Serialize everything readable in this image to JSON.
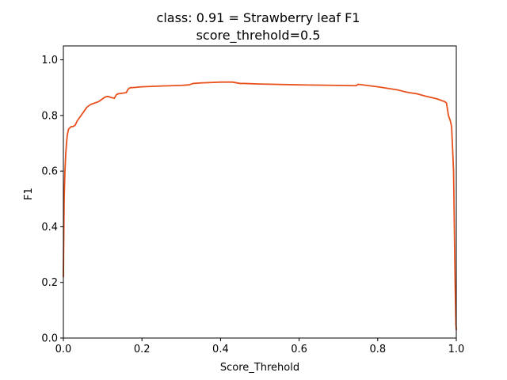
{
  "chart_data": {
    "type": "line",
    "title": "class: 0.91 = Strawberry leaf F1",
    "subtitle": "score_threhold=0.5",
    "xlabel": "Score_Threhold",
    "ylabel": "F1",
    "xlim": [
      0.0,
      1.0
    ],
    "ylim": [
      0.0,
      1.05
    ],
    "grid": false,
    "x_ticks": [
      0.0,
      0.2,
      0.4,
      0.6,
      0.8,
      1.0
    ],
    "x_tick_labels": [
      "0.0",
      "0.2",
      "0.4",
      "0.6",
      "0.8",
      "1.0"
    ],
    "y_ticks": [
      0.0,
      0.2,
      0.4,
      0.6,
      0.8,
      1.0
    ],
    "y_tick_labels": [
      "0.0",
      "0.2",
      "0.4",
      "0.6",
      "0.8",
      "1.0"
    ],
    "series": [
      {
        "name": "Strawberry leaf F1",
        "color": "#e8501c",
        "x": [
          0.0,
          0.002,
          0.004,
          0.006,
          0.008,
          0.01,
          0.013,
          0.016,
          0.02,
          0.025,
          0.03,
          0.035,
          0.04,
          0.045,
          0.05,
          0.055,
          0.06,
          0.065,
          0.07,
          0.075,
          0.08,
          0.09,
          0.1,
          0.105,
          0.11,
          0.115,
          0.12,
          0.13,
          0.135,
          0.14,
          0.15,
          0.16,
          0.165,
          0.17,
          0.175,
          0.2,
          0.25,
          0.3,
          0.32,
          0.33,
          0.35,
          0.4,
          0.42,
          0.43,
          0.45,
          0.46,
          0.5,
          0.6,
          0.7,
          0.745,
          0.75,
          0.8,
          0.85,
          0.87,
          0.88,
          0.9,
          0.92,
          0.95,
          0.96,
          0.97,
          0.975,
          0.98,
          0.985,
          0.988,
          0.99,
          0.993,
          0.995,
          0.997,
          0.999,
          1.0
        ],
        "y": [
          0.22,
          0.5,
          0.6,
          0.66,
          0.7,
          0.73,
          0.75,
          0.755,
          0.76,
          0.76,
          0.765,
          0.78,
          0.79,
          0.8,
          0.81,
          0.82,
          0.83,
          0.835,
          0.84,
          0.842,
          0.845,
          0.85,
          0.86,
          0.865,
          0.868,
          0.868,
          0.865,
          0.862,
          0.875,
          0.878,
          0.88,
          0.882,
          0.895,
          0.9,
          0.9,
          0.903,
          0.906,
          0.908,
          0.91,
          0.915,
          0.917,
          0.92,
          0.92,
          0.92,
          0.915,
          0.915,
          0.913,
          0.91,
          0.908,
          0.907,
          0.912,
          0.903,
          0.892,
          0.885,
          0.882,
          0.878,
          0.87,
          0.86,
          0.855,
          0.85,
          0.845,
          0.8,
          0.78,
          0.76,
          0.7,
          0.6,
          0.4,
          0.2,
          0.05,
          0.03
        ]
      }
    ]
  }
}
